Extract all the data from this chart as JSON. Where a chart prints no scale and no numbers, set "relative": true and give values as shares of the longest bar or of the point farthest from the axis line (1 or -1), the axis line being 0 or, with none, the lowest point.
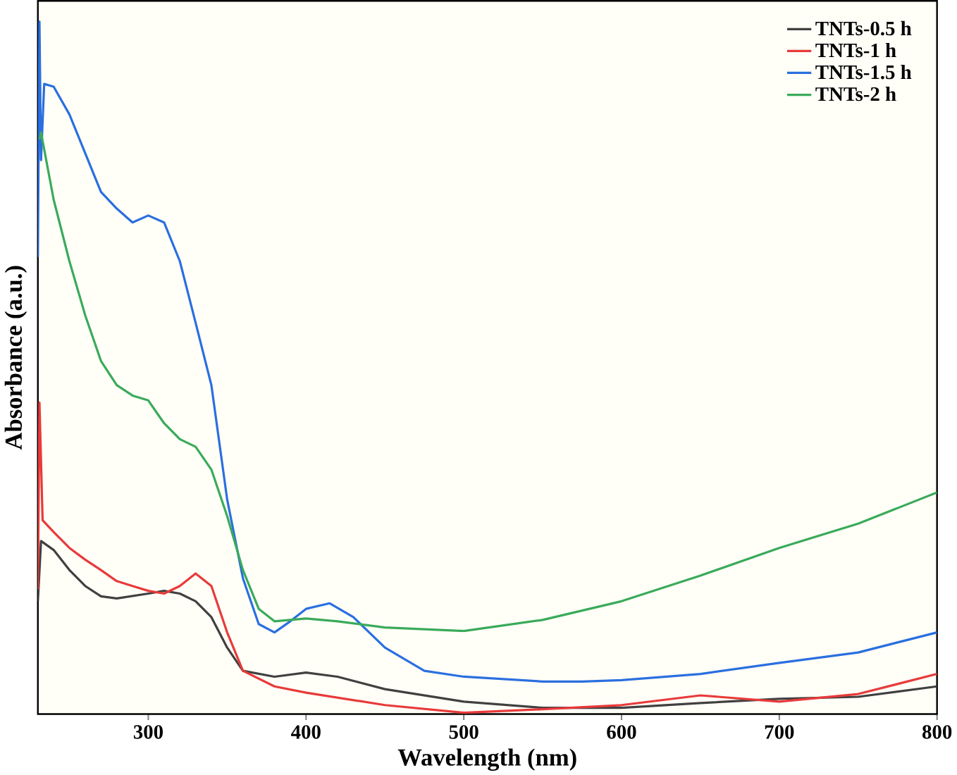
{
  "chart_data": {
    "type": "line",
    "xlabel": "Wavelength (nm)",
    "ylabel": "Absorbance (a.u.)",
    "relative": true,
    "xlim": [
      230,
      800
    ],
    "xticks": [
      300,
      400,
      500,
      600,
      700,
      800
    ],
    "legend": "top right",
    "grid": false,
    "marker": "none",
    "line_style": "solid",
    "series": [
      {
        "name": "TNTs-0.5 h",
        "color": "#404040",
        "x": [
          230,
          232,
          240,
          250,
          260,
          270,
          280,
          300,
          310,
          320,
          330,
          340,
          350,
          360,
          380,
          400,
          420,
          450,
          500,
          550,
          600,
          650,
          700,
          750,
          800
        ],
        "values": [
          0.163,
          0.25,
          0.237,
          0.208,
          0.185,
          0.17,
          0.167,
          0.174,
          0.178,
          0.174,
          0.163,
          0.14,
          0.096,
          0.0625,
          0.054,
          0.06,
          0.054,
          0.036,
          0.018,
          0.009,
          0.009,
          0.016,
          0.022,
          0.025,
          0.04
        ]
      },
      {
        "name": "TNTs-1 h",
        "color": "#e83a3a",
        "x": [
          230,
          231,
          233,
          240,
          250,
          260,
          270,
          280,
          290,
          300,
          310,
          320,
          330,
          340,
          350,
          360,
          380,
          400,
          450,
          500,
          550,
          600,
          650,
          700,
          750,
          800
        ],
        "values": [
          0.18,
          0.45,
          0.28,
          0.263,
          0.24,
          0.223,
          0.208,
          0.192,
          0.185,
          0.178,
          0.174,
          0.185,
          0.203,
          0.185,
          0.118,
          0.0625,
          0.04,
          0.031,
          0.013,
          0.002,
          0.007,
          0.013,
          0.027,
          0.018,
          0.029,
          0.058
        ]
      },
      {
        "name": "TNTs-1.5 h",
        "color": "#2a6fe0",
        "x": [
          230,
          231,
          232,
          234,
          240,
          250,
          260,
          270,
          280,
          290,
          300,
          310,
          320,
          330,
          340,
          350,
          360,
          370,
          380,
          390,
          400,
          415,
          430,
          450,
          475,
          500,
          550,
          575,
          600,
          650,
          700,
          750,
          800
        ],
        "values": [
          0.66,
          1.0,
          0.8,
          0.91,
          0.906,
          0.866,
          0.81,
          0.754,
          0.73,
          0.71,
          0.72,
          0.71,
          0.654,
          0.565,
          0.475,
          0.31,
          0.196,
          0.13,
          0.118,
          0.134,
          0.152,
          0.16,
          0.14,
          0.096,
          0.0625,
          0.054,
          0.047,
          0.047,
          0.049,
          0.058,
          0.074,
          0.089,
          0.118
        ]
      },
      {
        "name": "TNTs-2 h",
        "color": "#3aaa5a",
        "x": [
          231,
          232,
          240,
          250,
          260,
          270,
          280,
          290,
          300,
          310,
          320,
          330,
          340,
          350,
          360,
          370,
          380,
          400,
          420,
          450,
          500,
          550,
          600,
          650,
          700,
          750,
          800
        ],
        "values": [
          0.83,
          0.84,
          0.743,
          0.654,
          0.576,
          0.51,
          0.475,
          0.46,
          0.453,
          0.42,
          0.397,
          0.386,
          0.353,
          0.286,
          0.208,
          0.152,
          0.134,
          0.138,
          0.134,
          0.125,
          0.12,
          0.136,
          0.163,
          0.2,
          0.24,
          0.275,
          0.32
        ]
      }
    ]
  }
}
